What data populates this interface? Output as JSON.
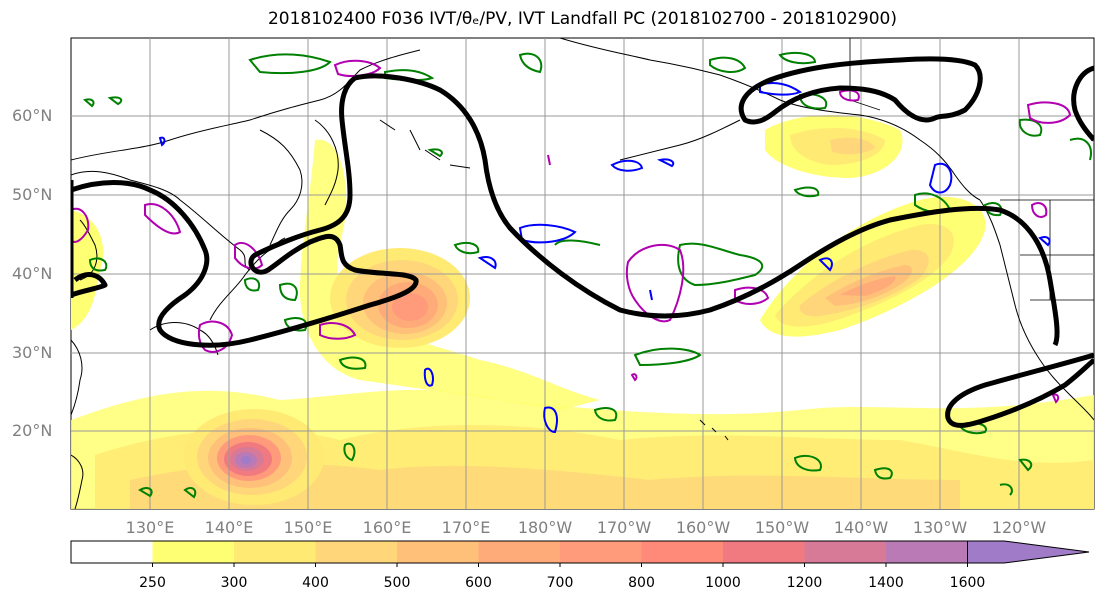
{
  "title": "2018102400 F036 IVT/θₑ/PV, IVT Landfall PC (2018102700 - 2018102900)",
  "lat_labels": [
    "60°N",
    "50°N",
    "40°N",
    "30°N",
    "20°N"
  ],
  "lon_labels": [
    "130°E",
    "140°E",
    "150°E",
    "160°E",
    "170°E",
    "180°W",
    "170°W",
    "160°W",
    "150°W",
    "140°W",
    "130°W",
    "120°W"
  ],
  "colorbar": {
    "levels": [
      "250",
      "300",
      "400",
      "500",
      "600",
      "700",
      "800",
      "1000",
      "1200",
      "1400",
      "1600"
    ],
    "colors": [
      "#ffffff",
      "#ffff73",
      "#ffeb73",
      "#ffd77a",
      "#ffc07a",
      "#ffab79",
      "#ff9a7a",
      "#ff8a7a",
      "#f07a80",
      "#d77a98",
      "#b97ab5",
      "#a07cc8"
    ]
  },
  "contour_colors": {
    "landfall_pc": "#000000",
    "theta_e": "#008000",
    "pv_blue": "#0000ff",
    "pv_magenta": "#b000b0",
    "coast": "#000000"
  }
}
